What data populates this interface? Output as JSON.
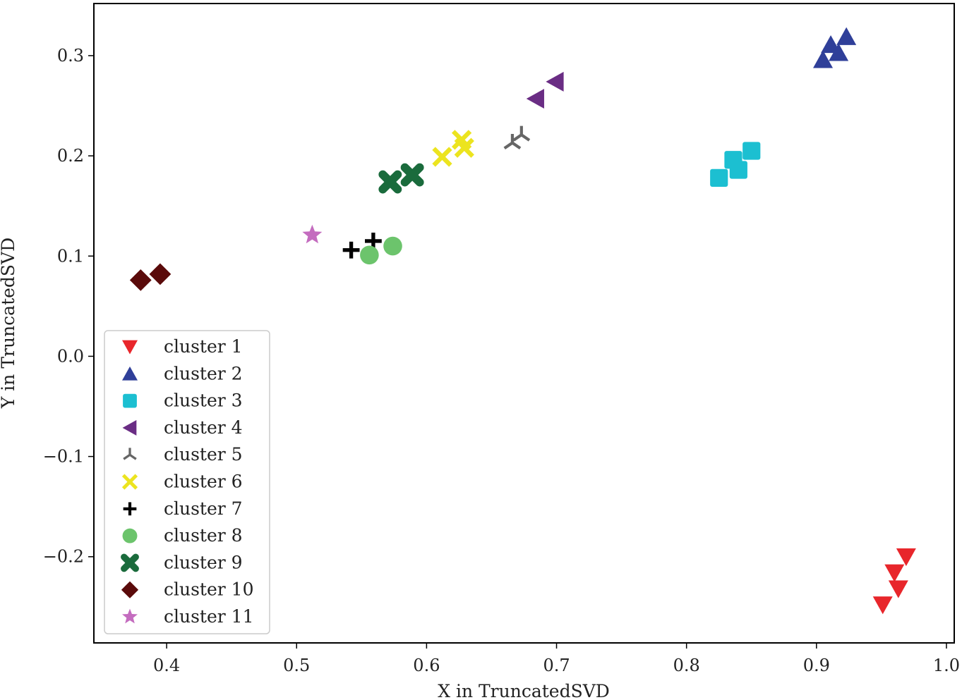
{
  "chart_data": {
    "type": "scatter",
    "title": "",
    "xlabel": "X in TruncatedSVD",
    "ylabel": "Y in TruncatedSVD",
    "xlim": [
      0.344,
      1.006
    ],
    "ylim": [
      -0.286,
      0.352
    ],
    "xticks": [
      0.4,
      0.5,
      0.6,
      0.7,
      0.8,
      0.9,
      1.0
    ],
    "xtick_labels": [
      "0.4",
      "0.5",
      "0.6",
      "0.7",
      "0.8",
      "0.9",
      "1.0"
    ],
    "yticks": [
      -0.2,
      -0.1,
      0.0,
      0.1,
      0.2,
      0.3
    ],
    "ytick_labels": [
      "−0.2",
      "−0.1",
      "0.0",
      "0.1",
      "0.2",
      "0.3"
    ],
    "grid": false,
    "legend_position": "lower-left",
    "series": [
      {
        "name": "cluster 1",
        "marker": "triangle-down",
        "color": "#e8262b",
        "points": [
          [
            0.951,
            -0.248
          ],
          [
            0.96,
            -0.216
          ],
          [
            0.963,
            -0.232
          ],
          [
            0.969,
            -0.2
          ]
        ]
      },
      {
        "name": "cluster 2",
        "marker": "triangle-up",
        "color": "#2f3f99",
        "points": [
          [
            0.905,
            0.296
          ],
          [
            0.911,
            0.311
          ],
          [
            0.917,
            0.303
          ],
          [
            0.923,
            0.319
          ]
        ]
      },
      {
        "name": "cluster 3",
        "marker": "square",
        "color": "#1cbfd1",
        "points": [
          [
            0.825,
            0.178
          ],
          [
            0.836,
            0.196
          ],
          [
            0.84,
            0.186
          ],
          [
            0.85,
            0.205
          ]
        ]
      },
      {
        "name": "cluster 4",
        "marker": "triangle-left",
        "color": "#6a2d84",
        "points": [
          [
            0.684,
            0.257
          ],
          [
            0.699,
            0.274
          ]
        ]
      },
      {
        "name": "cluster 5",
        "marker": "tri-down",
        "color": "#666666",
        "points": [
          [
            0.666,
            0.213
          ],
          [
            0.673,
            0.221
          ]
        ]
      },
      {
        "name": "cluster 6",
        "marker": "x",
        "color": "#ece41f",
        "points": [
          [
            0.612,
            0.199
          ],
          [
            0.627,
            0.216
          ],
          [
            0.629,
            0.208
          ]
        ]
      },
      {
        "name": "cluster 7",
        "marker": "plus",
        "color": "#000000",
        "points": [
          [
            0.542,
            0.106
          ],
          [
            0.559,
            0.115
          ]
        ]
      },
      {
        "name": "cluster 8",
        "marker": "circle",
        "color": "#6cc46c",
        "points": [
          [
            0.556,
            0.101
          ],
          [
            0.574,
            0.11
          ]
        ]
      },
      {
        "name": "cluster 9",
        "marker": "x-filled",
        "color": "#1a6b3c",
        "points": [
          [
            0.572,
            0.174
          ],
          [
            0.589,
            0.181
          ]
        ]
      },
      {
        "name": "cluster 10",
        "marker": "diamond",
        "color": "#5a0a0a",
        "points": [
          [
            0.38,
            0.076
          ],
          [
            0.395,
            0.082
          ]
        ]
      },
      {
        "name": "cluster 11",
        "marker": "star",
        "color": "#c46cbf",
        "points": [
          [
            0.512,
            0.121
          ]
        ]
      }
    ]
  }
}
